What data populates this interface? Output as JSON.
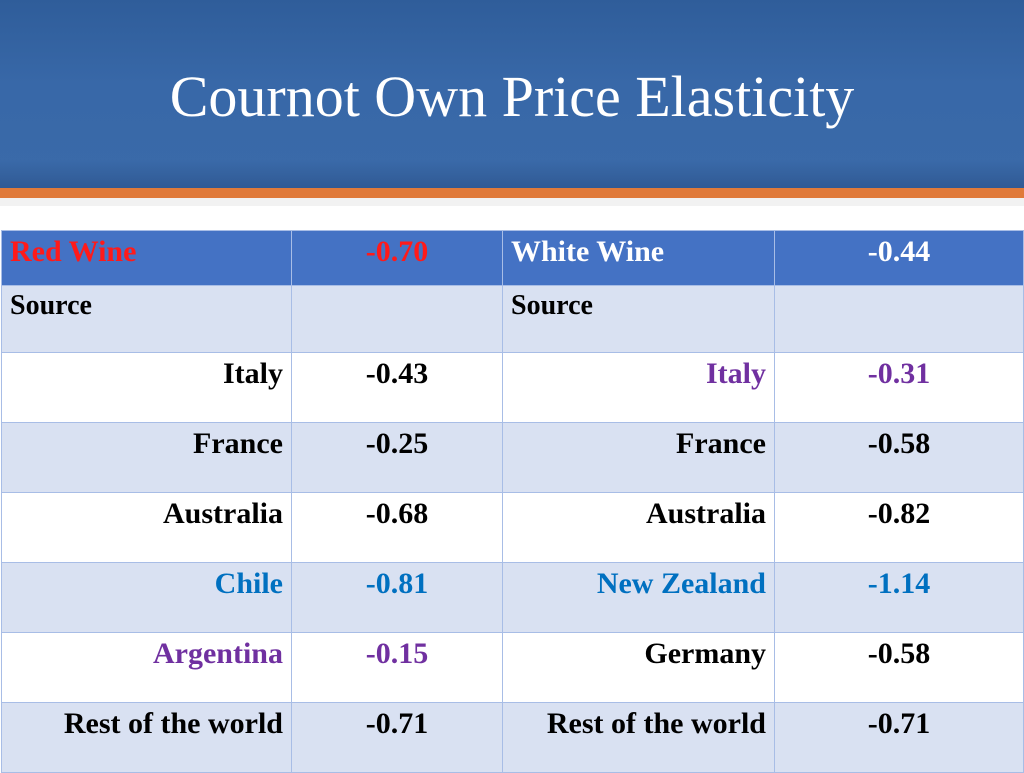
{
  "title": "Cournot Own Price Elasticity",
  "colors": {
    "banner": "#3868a8",
    "orange_bar": "#e07a3a",
    "header_row": "#4472c4",
    "red": "#ff1a1a",
    "purple": "#7030a0",
    "blue": "#0070c0"
  },
  "table": {
    "red": {
      "label": "Red  Wine",
      "value": "-0.70",
      "source_label": "Source"
    },
    "white": {
      "label": "White Wine",
      "value": "-0.44",
      "source_label": "Source"
    },
    "rows": [
      {
        "red_country": "Italy",
        "red_value": "-0.43",
        "white_country": "Italy",
        "white_value": "-0.31"
      },
      {
        "red_country": "France",
        "red_value": "-0.25",
        "white_country": "France",
        "white_value": "-0.58"
      },
      {
        "red_country": "Australia",
        "red_value": "-0.68",
        "white_country": "Australia",
        "white_value": "-0.82"
      },
      {
        "red_country": "Chile",
        "red_value": "-0.81",
        "white_country": "New Zealand",
        "white_value": "-1.14"
      },
      {
        "red_country": "Argentina",
        "red_value": "-0.15",
        "white_country": "Germany",
        "white_value": "-0.58"
      },
      {
        "red_country": "Rest of the world",
        "red_value": "-0.71",
        "white_country": "Rest of the world",
        "white_value": "-0.71"
      }
    ]
  }
}
